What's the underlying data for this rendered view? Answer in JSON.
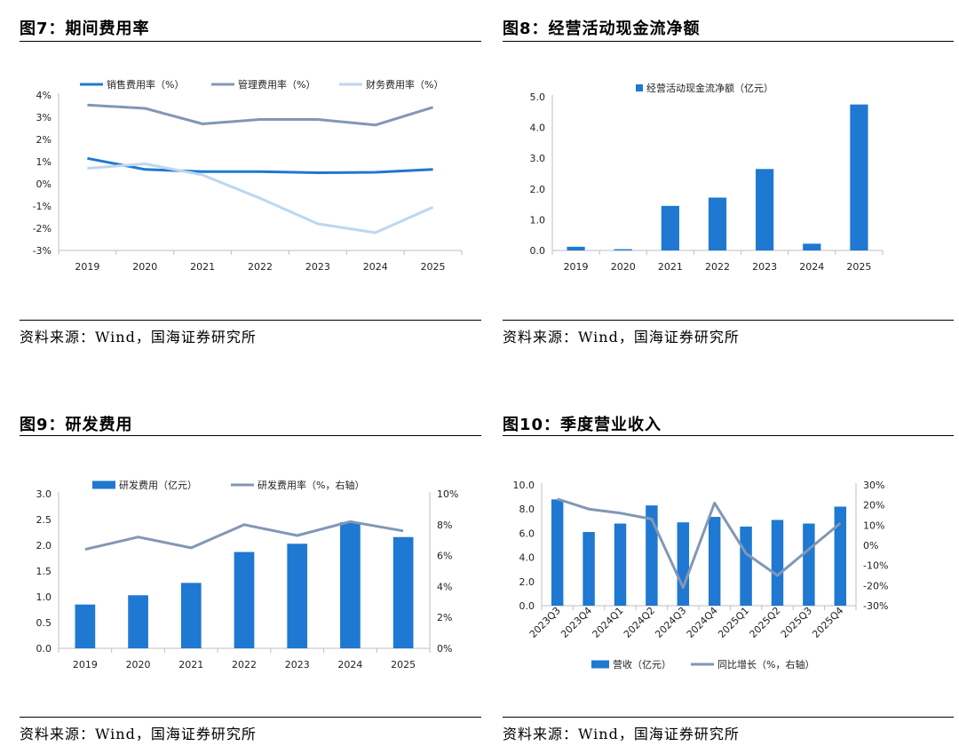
{
  "panels": [
    {
      "title": "图7：期间费用率",
      "source": "资料来源：Wind，国海证券研究所",
      "chart_data": {
        "type": "line",
        "categories": [
          "2019",
          "2020",
          "2021",
          "2022",
          "2023",
          "2024",
          "2025"
        ],
        "series": [
          {
            "name": "销售费用率（%）",
            "values": [
              1.15,
              0.65,
              0.55,
              0.55,
              0.5,
              0.52,
              0.65
            ],
            "color": "#1f78d1"
          },
          {
            "name": "管理费用率（%）",
            "values": [
              3.55,
              3.4,
              2.7,
              2.9,
              2.9,
              2.65,
              3.45
            ],
            "color": "#8297b5"
          },
          {
            "name": "财务费用率（%）",
            "values": [
              0.7,
              0.9,
              0.4,
              -0.65,
              -1.8,
              -2.2,
              -1.05
            ],
            "color": "#bcd7f0"
          }
        ],
        "y_ticks": [
          "4%",
          "3%",
          "2%",
          "1%",
          "0%",
          "-1%",
          "-2%",
          "-3%"
        ],
        "ylim": [
          -3,
          4
        ],
        "legend": "top"
      }
    },
    {
      "title": "图8：经营活动现金流净额",
      "source": "资料来源：Wind，国海证券研究所",
      "chart_data": {
        "type": "bar",
        "categories": [
          "2019",
          "2020",
          "2021",
          "2022",
          "2023",
          "2024",
          "2025"
        ],
        "series": [
          {
            "name": "经营活动现金流净额（亿元）",
            "values": [
              0.12,
              0.04,
              1.45,
              1.72,
              2.65,
              0.22,
              4.75
            ],
            "color": "#1f78d1"
          }
        ],
        "y_ticks": [
          "5.0",
          "4.0",
          "3.0",
          "2.0",
          "1.0",
          "0.0"
        ],
        "ylim": [
          0,
          5
        ],
        "legend": "top"
      }
    },
    {
      "title": "图9：研发费用",
      "source": "资料来源：Wind，国海证券研究所",
      "chart_data": {
        "type": "bar+line",
        "categories": [
          "2019",
          "2020",
          "2021",
          "2022",
          "2023",
          "2024",
          "2025"
        ],
        "series": [
          {
            "name": "研发费用（亿元）",
            "values": [
              0.85,
              1.03,
              1.27,
              1.87,
              2.03,
              2.45,
              2.16
            ],
            "color": "#1f78d1",
            "axis": "left"
          },
          {
            "name": "研发费用率（%，右轴）",
            "values": [
              6.4,
              7.2,
              6.5,
              8.0,
              7.3,
              8.2,
              7.6
            ],
            "color": "#8297b5",
            "axis": "right"
          }
        ],
        "y_ticks": [
          "3.0",
          "2.5",
          "2.0",
          "1.5",
          "1.0",
          "0.5",
          "0.0"
        ],
        "y2_ticks": [
          "10%",
          "8%",
          "6%",
          "4%",
          "2%",
          "0%"
        ],
        "ylim": [
          0,
          3
        ],
        "y2lim": [
          0,
          10
        ],
        "legend": "top"
      }
    },
    {
      "title": "图10：季度营业收入",
      "source": "资料来源：Wind，国海证券研究所",
      "chart_data": {
        "type": "bar+line",
        "categories": [
          "2023Q3",
          "2023Q4",
          "2024Q1",
          "2024Q2",
          "2024Q3",
          "2024Q4",
          "2025Q1",
          "2025Q2",
          "2025Q3",
          "2025Q4"
        ],
        "series": [
          {
            "name": "营收（亿元）",
            "values": [
              8.8,
              6.1,
              6.8,
              8.3,
              6.9,
              7.35,
              6.55,
              7.1,
              6.8,
              8.2
            ],
            "color": "#1f78d1",
            "axis": "left"
          },
          {
            "name": "同比增长（%，右轴）",
            "values": [
              23,
              18,
              16,
              13,
              -21,
              21,
              -4,
              -15,
              -2,
              11
            ],
            "color": "#8297b5",
            "axis": "right"
          }
        ],
        "y_ticks": [
          "10.0",
          "8.0",
          "6.0",
          "4.0",
          "2.0",
          "0.0"
        ],
        "y2_ticks": [
          "30%",
          "20%",
          "10%",
          "0%",
          "-10%",
          "-20%",
          "-30%"
        ],
        "ylim": [
          0,
          10
        ],
        "y2lim": [
          -30,
          30
        ],
        "legend": "bottom"
      }
    }
  ]
}
